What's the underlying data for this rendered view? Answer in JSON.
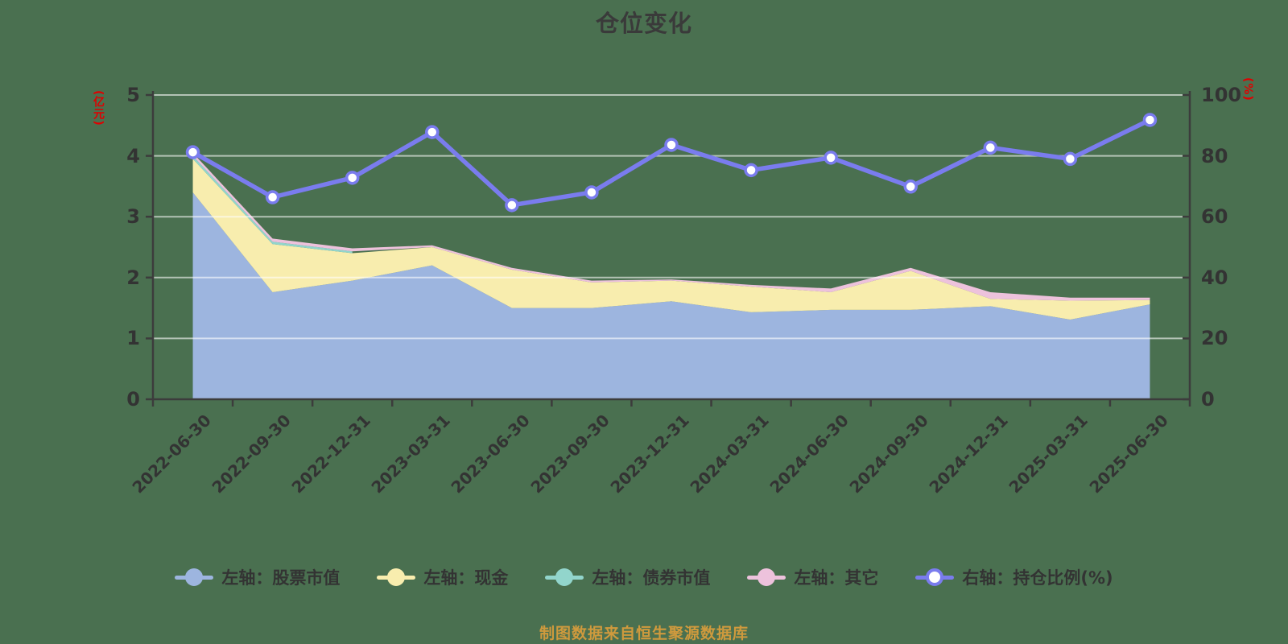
{
  "title": "仓位变化",
  "footer": "制图数据来自恒生聚源数据库",
  "chart_data": {
    "type": "area",
    "title": "仓位变化",
    "stacked": true,
    "grid": true,
    "legend_position": "bottom",
    "categories": [
      "2022-06-30",
      "2022-09-30",
      "2022-12-31",
      "2023-03-31",
      "2023-06-30",
      "2023-09-30",
      "2023-12-31",
      "2024-03-31",
      "2024-06-30",
      "2024-09-30",
      "2024-12-31",
      "2025-03-31",
      "2025-06-30"
    ],
    "left_axis": {
      "unit": "(亿元)",
      "min": 0,
      "max": 5,
      "ticks": [
        0,
        1,
        2,
        3,
        4,
        5
      ]
    },
    "right_axis": {
      "unit": "(%)",
      "min": 0,
      "max": 100,
      "ticks": [
        0,
        20,
        40,
        60,
        80,
        100
      ]
    },
    "series": [
      {
        "name": "左轴：股票市值",
        "axis": "left",
        "kind": "area",
        "marker": "filled",
        "color": "#9DB5DF",
        "values": [
          3.4,
          1.76,
          1.95,
          2.2,
          1.5,
          1.5,
          1.61,
          1.43,
          1.47,
          1.47,
          1.53,
          1.31,
          1.56
        ]
      },
      {
        "name": "左轴：现金",
        "axis": "left",
        "kind": "area",
        "marker": "filled",
        "color": "#F8EDAE",
        "values": [
          0.55,
          0.79,
          0.45,
          0.3,
          0.63,
          0.42,
          0.34,
          0.42,
          0.29,
          0.64,
          0.12,
          0.31,
          0.07
        ]
      },
      {
        "name": "左轴：债券市值",
        "axis": "left",
        "kind": "area",
        "marker": "filled",
        "color": "#92D5CC",
        "values": [
          0.05,
          0.04,
          0.03,
          null,
          null,
          null,
          null,
          null,
          null,
          null,
          null,
          null,
          null
        ]
      },
      {
        "name": "左轴：其它",
        "axis": "left",
        "kind": "area",
        "marker": "filled",
        "color": "#EDC2DC",
        "values": [
          0.05,
          0.05,
          0.05,
          0.03,
          0.03,
          0.03,
          0.02,
          0.03,
          0.06,
          0.05,
          0.11,
          0.05,
          0.04
        ]
      },
      {
        "name": "右轴：持仓比例(%)",
        "axis": "right",
        "kind": "line",
        "marker": "hollow",
        "color": "#7A7CEE",
        "values": [
          81.2,
          66.4,
          72.8,
          87.8,
          63.8,
          68.0,
          83.6,
          75.3,
          79.4,
          69.9,
          82.7,
          79.0,
          91.8
        ]
      }
    ]
  },
  "colors": {
    "background": "#4A7050",
    "axis": "#3C3C3C",
    "tick_label": "#333333",
    "gridline": "rgba(255,255,255,0.58)",
    "unit_label": "#E00000",
    "footer": "#CF9A3D"
  }
}
